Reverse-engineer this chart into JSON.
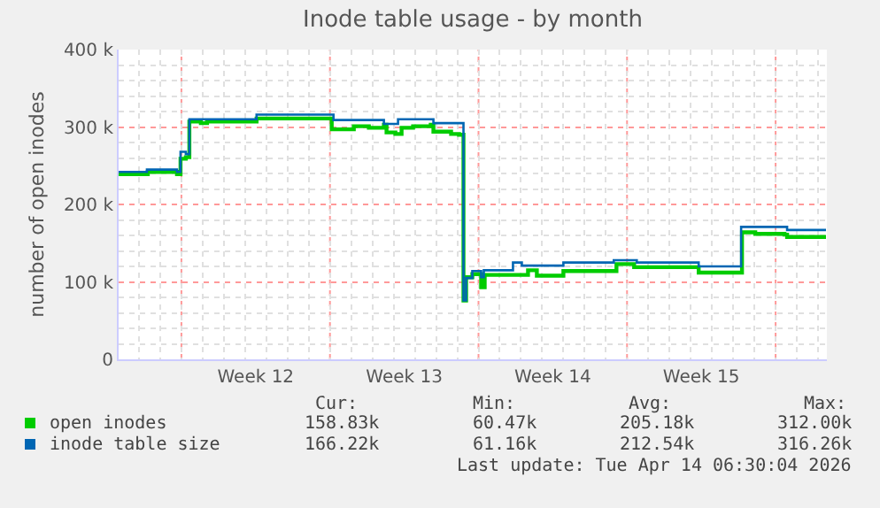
{
  "chart_data": {
    "type": "step",
    "title": "Inode table usage - by month",
    "ylabel": "number of open inodes",
    "xlim": [
      "2026-03-13T01:00",
      "2026-04-15T10:00"
    ],
    "xticks": [
      {
        "value": "2026-03-16",
        "label": null
      },
      {
        "value": "2026-03-19T12:00",
        "label": "Week 12"
      },
      {
        "value": "2026-03-23",
        "label": null
      },
      {
        "value": "2026-03-26T12:00",
        "label": "Week 13"
      },
      {
        "value": "2026-03-30",
        "label": null
      },
      {
        "value": "2026-04-02T12:00",
        "label": "Week 14"
      },
      {
        "value": "2026-04-06",
        "label": null
      },
      {
        "value": "2026-04-09T12:00",
        "label": "Week 15"
      },
      {
        "value": "2026-04-13",
        "label": null
      }
    ],
    "ylim": [
      0,
      400000
    ],
    "yticks": [
      {
        "value": 0,
        "label": "0"
      },
      {
        "value": 100000,
        "label": "100 k"
      },
      {
        "value": 200000,
        "label": "200 k"
      },
      {
        "value": 300000,
        "label": "300 k"
      },
      {
        "value": 400000,
        "label": "400 k"
      }
    ],
    "grid": true,
    "legend": "bottom left",
    "series": [
      {
        "name": "open inodes",
        "color": "#00cc00",
        "x": [
          "2026-03-13T01:00",
          "2026-03-14T10:00",
          "2026-03-15T19:00",
          "2026-03-15T23:00",
          "2026-03-16T05:00",
          "2026-03-16T09:00",
          "2026-03-16T22:00",
          "2026-03-17T05:00",
          "2026-03-19T13:00",
          "2026-03-23T02:00",
          "2026-03-24T03:00",
          "2026-03-24T20:00",
          "2026-03-25T13:00",
          "2026-03-25T16:00",
          "2026-03-26T02:00",
          "2026-03-26T09:00",
          "2026-03-26T22:00",
          "2026-03-27T18:00",
          "2026-03-27T21:00",
          "2026-03-28T17:00",
          "2026-03-29T02:00",
          "2026-03-29T07:00",
          "2026-03-29T10:00",
          "2026-03-29T17:00",
          "2026-03-30T03:00",
          "2026-03-30T07:00",
          "2026-04-01T08:00",
          "2026-04-01T18:00",
          "2026-04-03T00:00",
          "2026-04-05T12:00",
          "2026-04-06T08:00",
          "2026-04-09T09:00",
          "2026-04-11T10:00",
          "2026-04-12T01:00",
          "2026-04-13T10:00",
          "2026-04-13T13:00",
          "2026-04-15T09:00"
        ],
        "values": [
          239000,
          242000,
          239000,
          259000,
          261000,
          307000,
          305000,
          307000,
          311000,
          297000,
          301000,
          299000,
          303000,
          293000,
          291000,
          299000,
          301000,
          303000,
          294000,
          291000,
          290000,
          76000,
          106000,
          110000,
          93000,
          109000,
          115000,
          108000,
          114000,
          123000,
          119000,
          112000,
          164000,
          162000,
          161000,
          158000,
          158000
        ]
      },
      {
        "name": "inode table size",
        "color": "#0066b3",
        "x": [
          "2026-03-13T01:00",
          "2026-03-14T09:00",
          "2026-03-15T19:00",
          "2026-03-15T23:00",
          "2026-03-16T05:00",
          "2026-03-16T09:00",
          "2026-03-19T13:00",
          "2026-03-23T04:00",
          "2026-03-25T13:00",
          "2026-03-26T05:00",
          "2026-03-27T21:00",
          "2026-03-29T07:00",
          "2026-03-29T10:00",
          "2026-03-29T17:00",
          "2026-03-30T03:00",
          "2026-03-30T06:00",
          "2026-03-31T15:00",
          "2026-04-01T01:00",
          "2026-04-03T00:00",
          "2026-04-05T09:00",
          "2026-04-06T11:00",
          "2026-04-09T09:00",
          "2026-04-11T09:00",
          "2026-04-13T13:00",
          "2026-04-15T09:00"
        ],
        "values": [
          242000,
          245000,
          242000,
          268000,
          265000,
          310000,
          316000,
          309000,
          304000,
          310000,
          305000,
          76000,
          105000,
          114000,
          106000,
          115000,
          125000,
          121000,
          125000,
          128000,
          125000,
          120000,
          171000,
          167000,
          167000
        ]
      }
    ],
    "annotations": [
      "Cur:",
      "Min:",
      "Avg:",
      "Max:",
      "158.83k",
      "60.47k",
      "205.18k",
      "312.00k",
      "166.22k",
      "61.16k",
      "212.54k",
      "316.26k",
      "Last update: Tue Apr 14 06:30:04 2026"
    ]
  }
}
